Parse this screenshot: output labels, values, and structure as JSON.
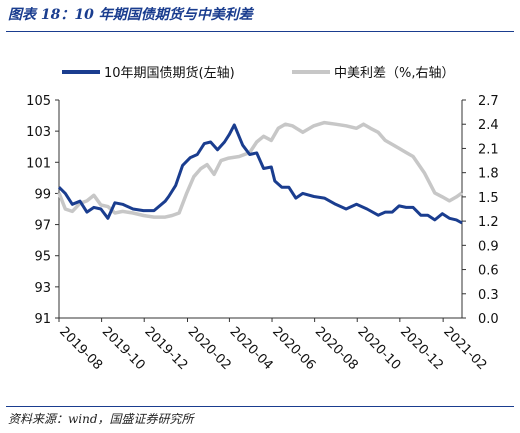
{
  "figure": {
    "title": "图表 18：10 年期国债期货与中美利差",
    "source": "资料来源：wind，国盛证券研究所"
  },
  "chart_data": {
    "type": "line",
    "x_tick_labels": [
      "2019-08",
      "2019-10",
      "2019-12",
      "2020-02",
      "2020-04",
      "2020-06",
      "2020-08",
      "2020-10",
      "2020-12",
      "2021-02"
    ],
    "x_range": [
      "2019-08-01",
      "2021-02-28"
    ],
    "y_left": {
      "range": [
        91,
        105
      ],
      "ticks": [
        91,
        93,
        95,
        97,
        99,
        101,
        103,
        105
      ],
      "labels": [
        "91",
        "93",
        "95",
        "97",
        "99",
        "101",
        "103",
        "105"
      ]
    },
    "y_right": {
      "range": [
        0.0,
        2.7
      ],
      "ticks": [
        0.0,
        0.3,
        0.6,
        0.9,
        1.2,
        1.5,
        1.8,
        2.1,
        2.4,
        2.7
      ],
      "labels": [
        "0.0",
        "0.3",
        "0.6",
        "0.9",
        "1.2",
        "1.5",
        "1.8",
        "2.1",
        "2.4",
        "2.7"
      ]
    },
    "series": [
      {
        "name": "10年期国债期货(左轴)",
        "axis": "left",
        "color": "#1a3d8f",
        "points": [
          [
            "2019-08-01",
            99.4
          ],
          [
            "2019-08-10",
            99.0
          ],
          [
            "2019-08-20",
            98.3
          ],
          [
            "2019-08-31",
            98.5
          ],
          [
            "2019-09-10",
            97.8
          ],
          [
            "2019-09-20",
            98.1
          ],
          [
            "2019-09-30",
            98.0
          ],
          [
            "2019-10-10",
            97.4
          ],
          [
            "2019-10-20",
            98.4
          ],
          [
            "2019-10-31",
            98.3
          ],
          [
            "2019-11-15",
            98.0
          ],
          [
            "2019-11-30",
            97.9
          ],
          [
            "2019-12-15",
            97.9
          ],
          [
            "2019-12-31",
            98.5
          ],
          [
            "2020-01-05",
            98.8
          ],
          [
            "2020-01-15",
            99.5
          ],
          [
            "2020-01-25",
            100.8
          ],
          [
            "2020-02-05",
            101.3
          ],
          [
            "2020-02-15",
            101.5
          ],
          [
            "2020-02-25",
            102.2
          ],
          [
            "2020-03-05",
            102.3
          ],
          [
            "2020-03-15",
            101.8
          ],
          [
            "2020-03-25",
            102.3
          ],
          [
            "2020-04-01",
            102.8
          ],
          [
            "2020-04-08",
            103.4
          ],
          [
            "2020-04-20",
            102.1
          ],
          [
            "2020-04-30",
            101.5
          ],
          [
            "2020-05-10",
            101.6
          ],
          [
            "2020-05-20",
            100.6
          ],
          [
            "2020-05-31",
            100.7
          ],
          [
            "2020-06-05",
            99.8
          ],
          [
            "2020-06-15",
            99.4
          ],
          [
            "2020-06-25",
            99.4
          ],
          [
            "2020-07-05",
            98.7
          ],
          [
            "2020-07-15",
            99.0
          ],
          [
            "2020-07-31",
            98.8
          ],
          [
            "2020-08-15",
            98.7
          ],
          [
            "2020-08-31",
            98.3
          ],
          [
            "2020-09-15",
            98.0
          ],
          [
            "2020-09-30",
            98.3
          ],
          [
            "2020-10-15",
            98.0
          ],
          [
            "2020-10-31",
            97.6
          ],
          [
            "2020-11-10",
            97.8
          ],
          [
            "2020-11-20",
            97.8
          ],
          [
            "2020-11-30",
            98.2
          ],
          [
            "2020-12-10",
            98.1
          ],
          [
            "2020-12-20",
            98.1
          ],
          [
            "2020-12-31",
            97.6
          ],
          [
            "2021-01-10",
            97.6
          ],
          [
            "2021-01-20",
            97.3
          ],
          [
            "2021-01-31",
            97.7
          ],
          [
            "2021-02-10",
            97.4
          ],
          [
            "2021-02-20",
            97.3
          ],
          [
            "2021-02-28",
            97.1
          ]
        ]
      },
      {
        "name": "中美利差（%,右轴）",
        "axis": "right",
        "color": "#c7c7c7",
        "points": [
          [
            "2019-08-01",
            1.55
          ],
          [
            "2019-08-10",
            1.35
          ],
          [
            "2019-08-20",
            1.32
          ],
          [
            "2019-08-31",
            1.42
          ],
          [
            "2019-09-10",
            1.45
          ],
          [
            "2019-09-20",
            1.52
          ],
          [
            "2019-09-30",
            1.4
          ],
          [
            "2019-10-10",
            1.38
          ],
          [
            "2019-10-20",
            1.3
          ],
          [
            "2019-10-31",
            1.32
          ],
          [
            "2019-11-15",
            1.3
          ],
          [
            "2019-11-30",
            1.27
          ],
          [
            "2019-12-15",
            1.25
          ],
          [
            "2019-12-31",
            1.25
          ],
          [
            "2020-01-10",
            1.27
          ],
          [
            "2020-01-20",
            1.3
          ],
          [
            "2020-01-31",
            1.55
          ],
          [
            "2020-02-10",
            1.75
          ],
          [
            "2020-02-20",
            1.85
          ],
          [
            "2020-02-29",
            1.9
          ],
          [
            "2020-03-10",
            1.78
          ],
          [
            "2020-03-20",
            1.95
          ],
          [
            "2020-03-31",
            1.98
          ],
          [
            "2020-04-15",
            2.0
          ],
          [
            "2020-04-30",
            2.05
          ],
          [
            "2020-05-10",
            2.18
          ],
          [
            "2020-05-20",
            2.25
          ],
          [
            "2020-05-31",
            2.2
          ],
          [
            "2020-06-10",
            2.35
          ],
          [
            "2020-06-20",
            2.4
          ],
          [
            "2020-06-30",
            2.38
          ],
          [
            "2020-07-15",
            2.3
          ],
          [
            "2020-07-31",
            2.38
          ],
          [
            "2020-08-15",
            2.42
          ],
          [
            "2020-08-31",
            2.4
          ],
          [
            "2020-09-15",
            2.38
          ],
          [
            "2020-09-30",
            2.35
          ],
          [
            "2020-10-10",
            2.4
          ],
          [
            "2020-10-20",
            2.35
          ],
          [
            "2020-10-31",
            2.3
          ],
          [
            "2020-11-10",
            2.2
          ],
          [
            "2020-11-20",
            2.15
          ],
          [
            "2020-11-30",
            2.1
          ],
          [
            "2020-12-10",
            2.05
          ],
          [
            "2020-12-20",
            2.0
          ],
          [
            "2021-01-05",
            1.8
          ],
          [
            "2021-01-20",
            1.55
          ],
          [
            "2021-01-31",
            1.5
          ],
          [
            "2021-02-10",
            1.45
          ],
          [
            "2021-02-20",
            1.5
          ],
          [
            "2021-02-28",
            1.55
          ]
        ]
      }
    ],
    "legend_position": "top",
    "grid": false
  }
}
